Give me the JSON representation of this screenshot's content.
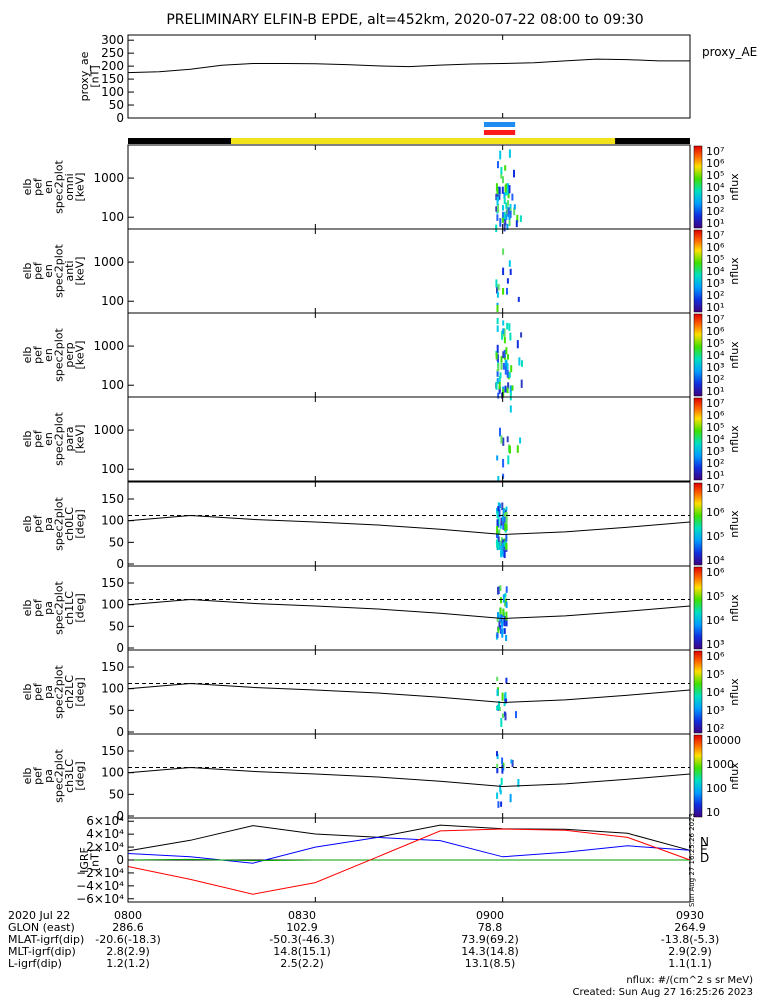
{
  "title": "PRELIMINARY ELFIN-B EPDE, alt=452km, 2020-07-22 08:00 to 09:30",
  "colors": {
    "orbit_bar_night": "#000000",
    "orbit_bar_day": "#f2e21b",
    "science_blue": "#1e8cf0",
    "science_red": "#ff1a1a",
    "grf_n": "#0000ff",
    "grf_e": "#00a000",
    "grf_d": "#ff0000",
    "grf_total": "#000000"
  },
  "panels": {
    "proxy_ae": {
      "ylabel_lines": [
        "proxy_ae",
        "[nT]"
      ],
      "right_label": "proxy_AE",
      "yticks": [
        "300",
        "250",
        "200",
        "150",
        "100",
        "50",
        "0"
      ]
    },
    "energy": [
      {
        "name": "omni",
        "ylabel_lines": [
          "elb",
          "pef",
          "en",
          "spec2plot",
          "omni",
          "[keV]"
        ],
        "yticks": [
          "1000",
          "100"
        ]
      },
      {
        "name": "anti",
        "ylabel_lines": [
          "elb",
          "pef",
          "en",
          "spec2plot",
          "anti",
          "[keV]"
        ],
        "yticks": [
          "1000",
          "100"
        ]
      },
      {
        "name": "perp",
        "ylabel_lines": [
          "elb",
          "pef",
          "en",
          "spec2plot",
          "perp",
          "[keV]"
        ],
        "yticks": [
          "1000",
          "100"
        ]
      },
      {
        "name": "para",
        "ylabel_lines": [
          "elb",
          "pef",
          "en",
          "spec2plot",
          "para",
          "[keV]"
        ],
        "yticks": [
          "1000",
          "100"
        ]
      }
    ],
    "pitch": [
      {
        "name": "ch0LC",
        "ylabel_lines": [
          "elb",
          "pef",
          "pa",
          "spec2plot",
          "ch0LC",
          "[deg]"
        ],
        "yticks": [
          "150",
          "100",
          "50",
          "0"
        ]
      },
      {
        "name": "ch1LC",
        "ylabel_lines": [
          "elb",
          "pef",
          "pa",
          "spec2plot",
          "ch1LC",
          "[deg]"
        ],
        "yticks": [
          "150",
          "100",
          "50",
          "0"
        ]
      },
      {
        "name": "ch2LC",
        "ylabel_lines": [
          "elb",
          "pef",
          "pa",
          "spec2plot",
          "ch2LC",
          "[deg]"
        ],
        "yticks": [
          "150",
          "100",
          "50",
          "0"
        ]
      },
      {
        "name": "ch3LC",
        "ylabel_lines": [
          "elb",
          "pef",
          "pa",
          "spec2plot",
          "ch3LC",
          "[deg]"
        ],
        "yticks": [
          "150",
          "100",
          "50",
          "0"
        ]
      }
    ],
    "igrf": {
      "ylabel_lines": [
        "IGRF",
        "[nT]"
      ],
      "yticks": [
        "6×10⁴",
        "4×10⁴",
        "2×10⁴",
        "0",
        "−2×10⁴",
        "−4×10⁴",
        "−6×10⁴"
      ],
      "legend": [
        "N",
        "E",
        "D"
      ]
    }
  },
  "colorbars": [
    {
      "label": "nflux",
      "ticks": [
        "10⁷",
        "10⁶",
        "10⁵",
        "10⁴",
        "10³",
        "10²",
        "10¹"
      ]
    },
    {
      "label": "nflux",
      "ticks": [
        "10⁷",
        "10⁶",
        "10⁵",
        "10⁴",
        "10³",
        "10²",
        "10¹"
      ]
    },
    {
      "label": "nflux",
      "ticks": [
        "10⁷",
        "10⁶",
        "10⁵",
        "10⁴",
        "10³",
        "10²",
        "10¹"
      ]
    },
    {
      "label": "nflux",
      "ticks": [
        "10⁷",
        "10⁶",
        "10⁵",
        "10⁴",
        "10³",
        "10²",
        "10¹"
      ]
    },
    {
      "label": "nflux",
      "ticks": [
        "10⁷",
        "10⁶",
        "10⁵",
        "10⁴"
      ]
    },
    {
      "label": "nflux",
      "ticks": [
        "10⁶",
        "10⁵",
        "10⁴",
        "10³"
      ]
    },
    {
      "label": "nflux",
      "ticks": [
        "10⁶",
        "10⁵",
        "10⁴",
        "10³",
        "10²"
      ]
    },
    {
      "label": "nflux",
      "ticks": [
        "10000",
        "1000",
        "100",
        "10"
      ]
    }
  ],
  "time_axis": {
    "ticks": [
      "0800",
      "0830",
      "0900",
      "0930"
    ]
  },
  "footer": {
    "rows": [
      {
        "label": "2020 Jul 22",
        "values": [
          "0800",
          "0830",
          "0900",
          "0930"
        ]
      },
      {
        "label": "GLON (east)",
        "values": [
          "286.6",
          "102.9",
          "78.8",
          "264.9"
        ]
      },
      {
        "label": "MLAT-igrf(dip)",
        "values": [
          "-20.6(-18.3)",
          "-50.3(-46.3)",
          "73.9(69.2)",
          "-13.8(-5.3)"
        ]
      },
      {
        "label": "MLT-igrf(dip)",
        "values": [
          "2.8(2.9)",
          "14.8(15.1)",
          "14.3(14.8)",
          "2.9(2.9)"
        ]
      },
      {
        "label": "L-igrf(dip)",
        "values": [
          "1.2(1.2)",
          "2.5(2.2)",
          "13.1(8.5)",
          "1.1(1.1)"
        ]
      }
    ],
    "units_note": "nflux: #/(cm^2 s sr MeV)",
    "created": "Created: Sun Aug 27 16:25:26 2023",
    "side_stamp": "Sun Aug 27 16:25:26 2023"
  },
  "chart_data": [
    {
      "type": "line",
      "name": "proxy_AE",
      "x_unit": "minutes after 08:00 UT",
      "x": [
        0,
        5,
        10,
        15,
        20,
        25,
        30,
        35,
        40,
        45,
        50,
        55,
        60,
        65,
        70,
        75,
        80,
        85,
        90
      ],
      "y": [
        175,
        178,
        188,
        203,
        210,
        210,
        209,
        206,
        201,
        198,
        204,
        208,
        210,
        213,
        220,
        227,
        225,
        220,
        220
      ],
      "xlim": [
        0,
        90
      ],
      "ylim": [
        0,
        320
      ]
    },
    {
      "type": "heatmap",
      "name": "energy spectrograms (omni, anti, perp, para)",
      "x_unit": "minutes after 08:00 UT",
      "active_interval": [
        58,
        62
      ],
      "y_scale": "log",
      "ylim": [
        50,
        7000
      ],
      "color_scale": "log nflux"
    },
    {
      "type": "line",
      "name": "pitch-angle loss cone (ch0LC..ch3LC)",
      "x_unit": "minutes after 08:00 UT",
      "x": [
        0,
        10,
        20,
        30,
        40,
        50,
        60,
        70,
        80,
        90
      ],
      "loss_cone_solid": [
        100,
        112,
        103,
        97,
        90,
        80,
        68,
        74,
        85,
        97
      ],
      "anti_loss_cone_dashed": 112,
      "ylim": [
        0,
        180
      ]
    },
    {
      "type": "line",
      "name": "IGRF field components",
      "x_unit": "minutes after 08:00 UT",
      "x": [
        0,
        10,
        20,
        30,
        40,
        50,
        60,
        70,
        80,
        90
      ],
      "series": [
        {
          "name": "N",
          "values": [
            10000,
            5000,
            -5000,
            20000,
            35000,
            30000,
            5000,
            12000,
            22000,
            15000
          ]
        },
        {
          "name": "E",
          "values": [
            0,
            1000,
            -1000,
            0,
            0,
            0,
            0,
            0,
            0,
            0
          ]
        },
        {
          "name": "D",
          "values": [
            -10000,
            -30000,
            -53000,
            -35000,
            5000,
            45000,
            48000,
            46000,
            35000,
            0
          ]
        }
      ],
      "ylim": [
        -65000,
        65000
      ]
    }
  ]
}
